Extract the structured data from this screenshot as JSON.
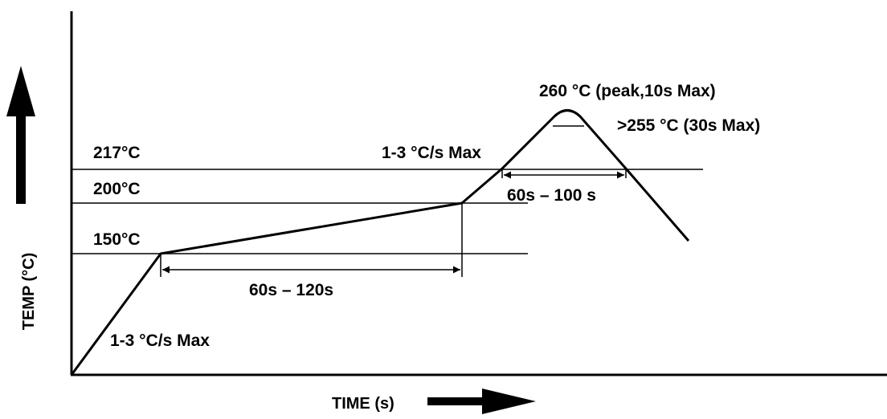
{
  "diagram": {
    "axes": {
      "y_label": "TEMP (°C)",
      "x_label": "TIME (s)"
    },
    "levels": {
      "t217": "217°C",
      "t200": "200°C",
      "t150": "150°C"
    },
    "annotations": {
      "ramp_up_rate": "1-3 °C/s Max",
      "ramp_to_peak_rate": "1-3 °C/s Max",
      "peak": "260 °C (peak,10s Max)",
      "above_255": ">255 °C (30s Max)",
      "soak_time": "60s – 120s",
      "reflow_time": "60s – 100 s"
    }
  }
}
